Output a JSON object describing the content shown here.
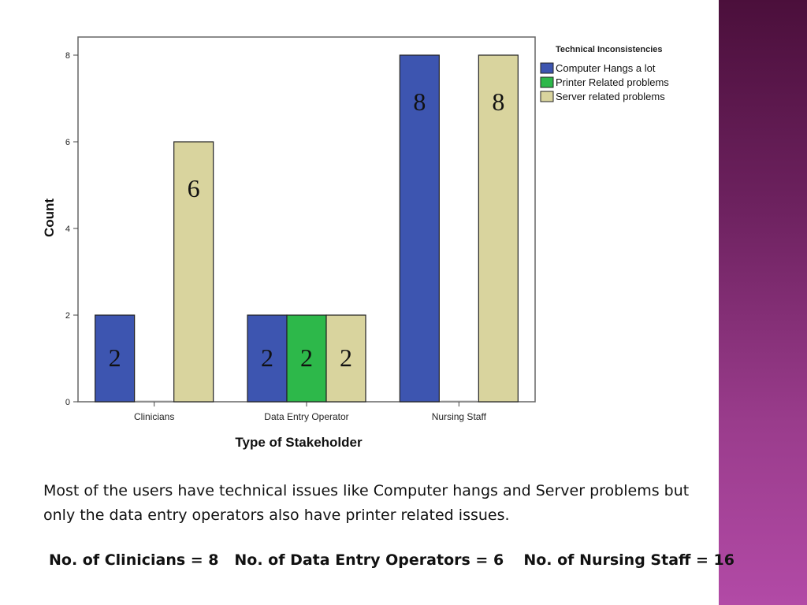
{
  "chart_data": {
    "type": "bar",
    "title": "",
    "xlabel": "Type of Stakeholder",
    "ylabel": "Count",
    "ylim": [
      0,
      8
    ],
    "yticks": [
      0,
      2,
      4,
      6,
      8
    ],
    "categories": [
      "Clinicians",
      "Data Entry Operator",
      "Nursing Staff"
    ],
    "legend_title": "Technical Inconsistencies",
    "legend_position": "top-right",
    "series": [
      {
        "name": "Computer Hangs a lot",
        "color": "#3d55b0",
        "values": [
          2,
          2,
          8
        ]
      },
      {
        "name": "Printer Related problems",
        "color": "#2db84a",
        "values": [
          0,
          2,
          0
        ]
      },
      {
        "name": "Server related problems",
        "color": "#d9d49e",
        "values": [
          6,
          2,
          8
        ]
      }
    ],
    "data_labels": [
      {
        "category": "Clinicians",
        "series": "Computer Hangs a lot",
        "text": "2"
      },
      {
        "category": "Clinicians",
        "series": "Server related problems",
        "text": "6"
      },
      {
        "category": "Data Entry Operator",
        "series": "Computer Hangs a lot",
        "text": "2"
      },
      {
        "category": "Data Entry Operator",
        "series": "Printer Related problems",
        "text": "2"
      },
      {
        "category": "Data Entry Operator",
        "series": "Server related problems",
        "text": "2"
      },
      {
        "category": "Nursing Staff",
        "series": "Computer Hangs a lot",
        "text": "8"
      },
      {
        "category": "Nursing Staff",
        "series": "Server related problems",
        "text": "8"
      }
    ]
  },
  "caption": "Most of the users have technical issues like Computer hangs  and Server problems but only the data entry operators also have printer related issues.",
  "counts": [
    "No. of Clinicians = 8",
    "No. of Data Entry Operators = 6",
    "No. of Nursing Staff = 16"
  ]
}
